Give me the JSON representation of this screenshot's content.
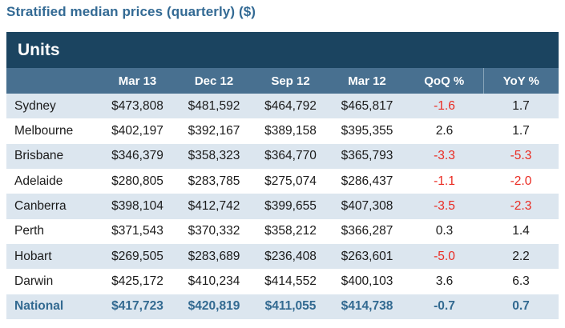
{
  "title": "Stratified median prices (quarterly) ($)",
  "colors": {
    "title_color": "#336a94",
    "units_bg": "#1b4460",
    "header_bg": "#487090",
    "stripe_bg": "#dce6ef",
    "negative_red": "#ea2a21",
    "national_blue": "#336a91",
    "text_color": "#1b1b1b",
    "header_sep": "#8aa6ba"
  },
  "table": {
    "section_label": "Units",
    "columns": [
      "",
      "Mar 13",
      "Dec 12",
      "Sep 12",
      "Mar 12",
      "QoQ %",
      "YoY %"
    ],
    "rows": [
      {
        "city": "Sydney",
        "cells": [
          "$473,808",
          "$481,592",
          "$464,792",
          "$465,817",
          "-1.6",
          "1.7"
        ],
        "is_national": false
      },
      {
        "city": "Melbourne",
        "cells": [
          "$402,197",
          "$392,167",
          "$389,158",
          "$395,355",
          "2.6",
          "1.7"
        ],
        "is_national": false
      },
      {
        "city": "Brisbane",
        "cells": [
          "$346,379",
          "$358,323",
          "$364,770",
          "$365,793",
          "-3.3",
          "-5.3"
        ],
        "is_national": false
      },
      {
        "city": "Adelaide",
        "cells": [
          "$280,805",
          "$283,785",
          "$275,074",
          "$286,437",
          "-1.1",
          "-2.0"
        ],
        "is_national": false
      },
      {
        "city": "Canberra",
        "cells": [
          "$398,104",
          "$412,742",
          "$399,655",
          "$407,308",
          "-3.5",
          "-2.3"
        ],
        "is_national": false
      },
      {
        "city": "Perth",
        "cells": [
          "$371,543",
          "$370,332",
          "$358,212",
          "$366,287",
          "0.3",
          "1.4"
        ],
        "is_national": false
      },
      {
        "city": "Hobart",
        "cells": [
          "$269,505",
          "$283,689",
          "$236,408",
          "$263,601",
          "-5.0",
          "2.2"
        ],
        "is_national": false
      },
      {
        "city": "Darwin",
        "cells": [
          "$425,172",
          "$410,234",
          "$414,552",
          "$400,103",
          "3.6",
          "6.3"
        ],
        "is_national": false
      },
      {
        "city": "National",
        "cells": [
          "$417,723",
          "$420,819",
          "$411,055",
          "$414,738",
          "-0.7",
          "0.7"
        ],
        "is_national": true
      }
    ]
  },
  "chart_data": {
    "type": "table",
    "title": "Stratified median prices (quarterly) ($)",
    "section": "Units",
    "columns": [
      "Mar 13",
      "Dec 12",
      "Sep 12",
      "Mar 12",
      "QoQ %",
      "YoY %"
    ],
    "rows": [
      {
        "city": "Sydney",
        "mar_13": 473808,
        "dec_12": 481592,
        "sep_12": 464792,
        "mar_12": 465817,
        "qoq_pct": -1.6,
        "yoy_pct": 1.7
      },
      {
        "city": "Melbourne",
        "mar_13": 402197,
        "dec_12": 392167,
        "sep_12": 389158,
        "mar_12": 395355,
        "qoq_pct": 2.6,
        "yoy_pct": 1.7
      },
      {
        "city": "Brisbane",
        "mar_13": 346379,
        "dec_12": 358323,
        "sep_12": 364770,
        "mar_12": 365793,
        "qoq_pct": -3.3,
        "yoy_pct": -5.3
      },
      {
        "city": "Adelaide",
        "mar_13": 280805,
        "dec_12": 283785,
        "sep_12": 275074,
        "mar_12": 286437,
        "qoq_pct": -1.1,
        "yoy_pct": -2.0
      },
      {
        "city": "Canberra",
        "mar_13": 398104,
        "dec_12": 412742,
        "sep_12": 399655,
        "mar_12": 407308,
        "qoq_pct": -3.5,
        "yoy_pct": -2.3
      },
      {
        "city": "Perth",
        "mar_13": 371543,
        "dec_12": 370332,
        "sep_12": 358212,
        "mar_12": 366287,
        "qoq_pct": 0.3,
        "yoy_pct": 1.4
      },
      {
        "city": "Hobart",
        "mar_13": 269505,
        "dec_12": 283689,
        "sep_12": 236408,
        "mar_12": 263601,
        "qoq_pct": -5.0,
        "yoy_pct": 2.2
      },
      {
        "city": "Darwin",
        "mar_13": 425172,
        "dec_12": 410234,
        "sep_12": 414552,
        "mar_12": 400103,
        "qoq_pct": 3.6,
        "yoy_pct": 6.3
      },
      {
        "city": "National",
        "mar_13": 417723,
        "dec_12": 420819,
        "sep_12": 411055,
        "mar_12": 414738,
        "qoq_pct": -0.7,
        "yoy_pct": 0.7
      }
    ],
    "notes": "Negative percentage values are shown in red; National summary row shown in blue bold."
  }
}
